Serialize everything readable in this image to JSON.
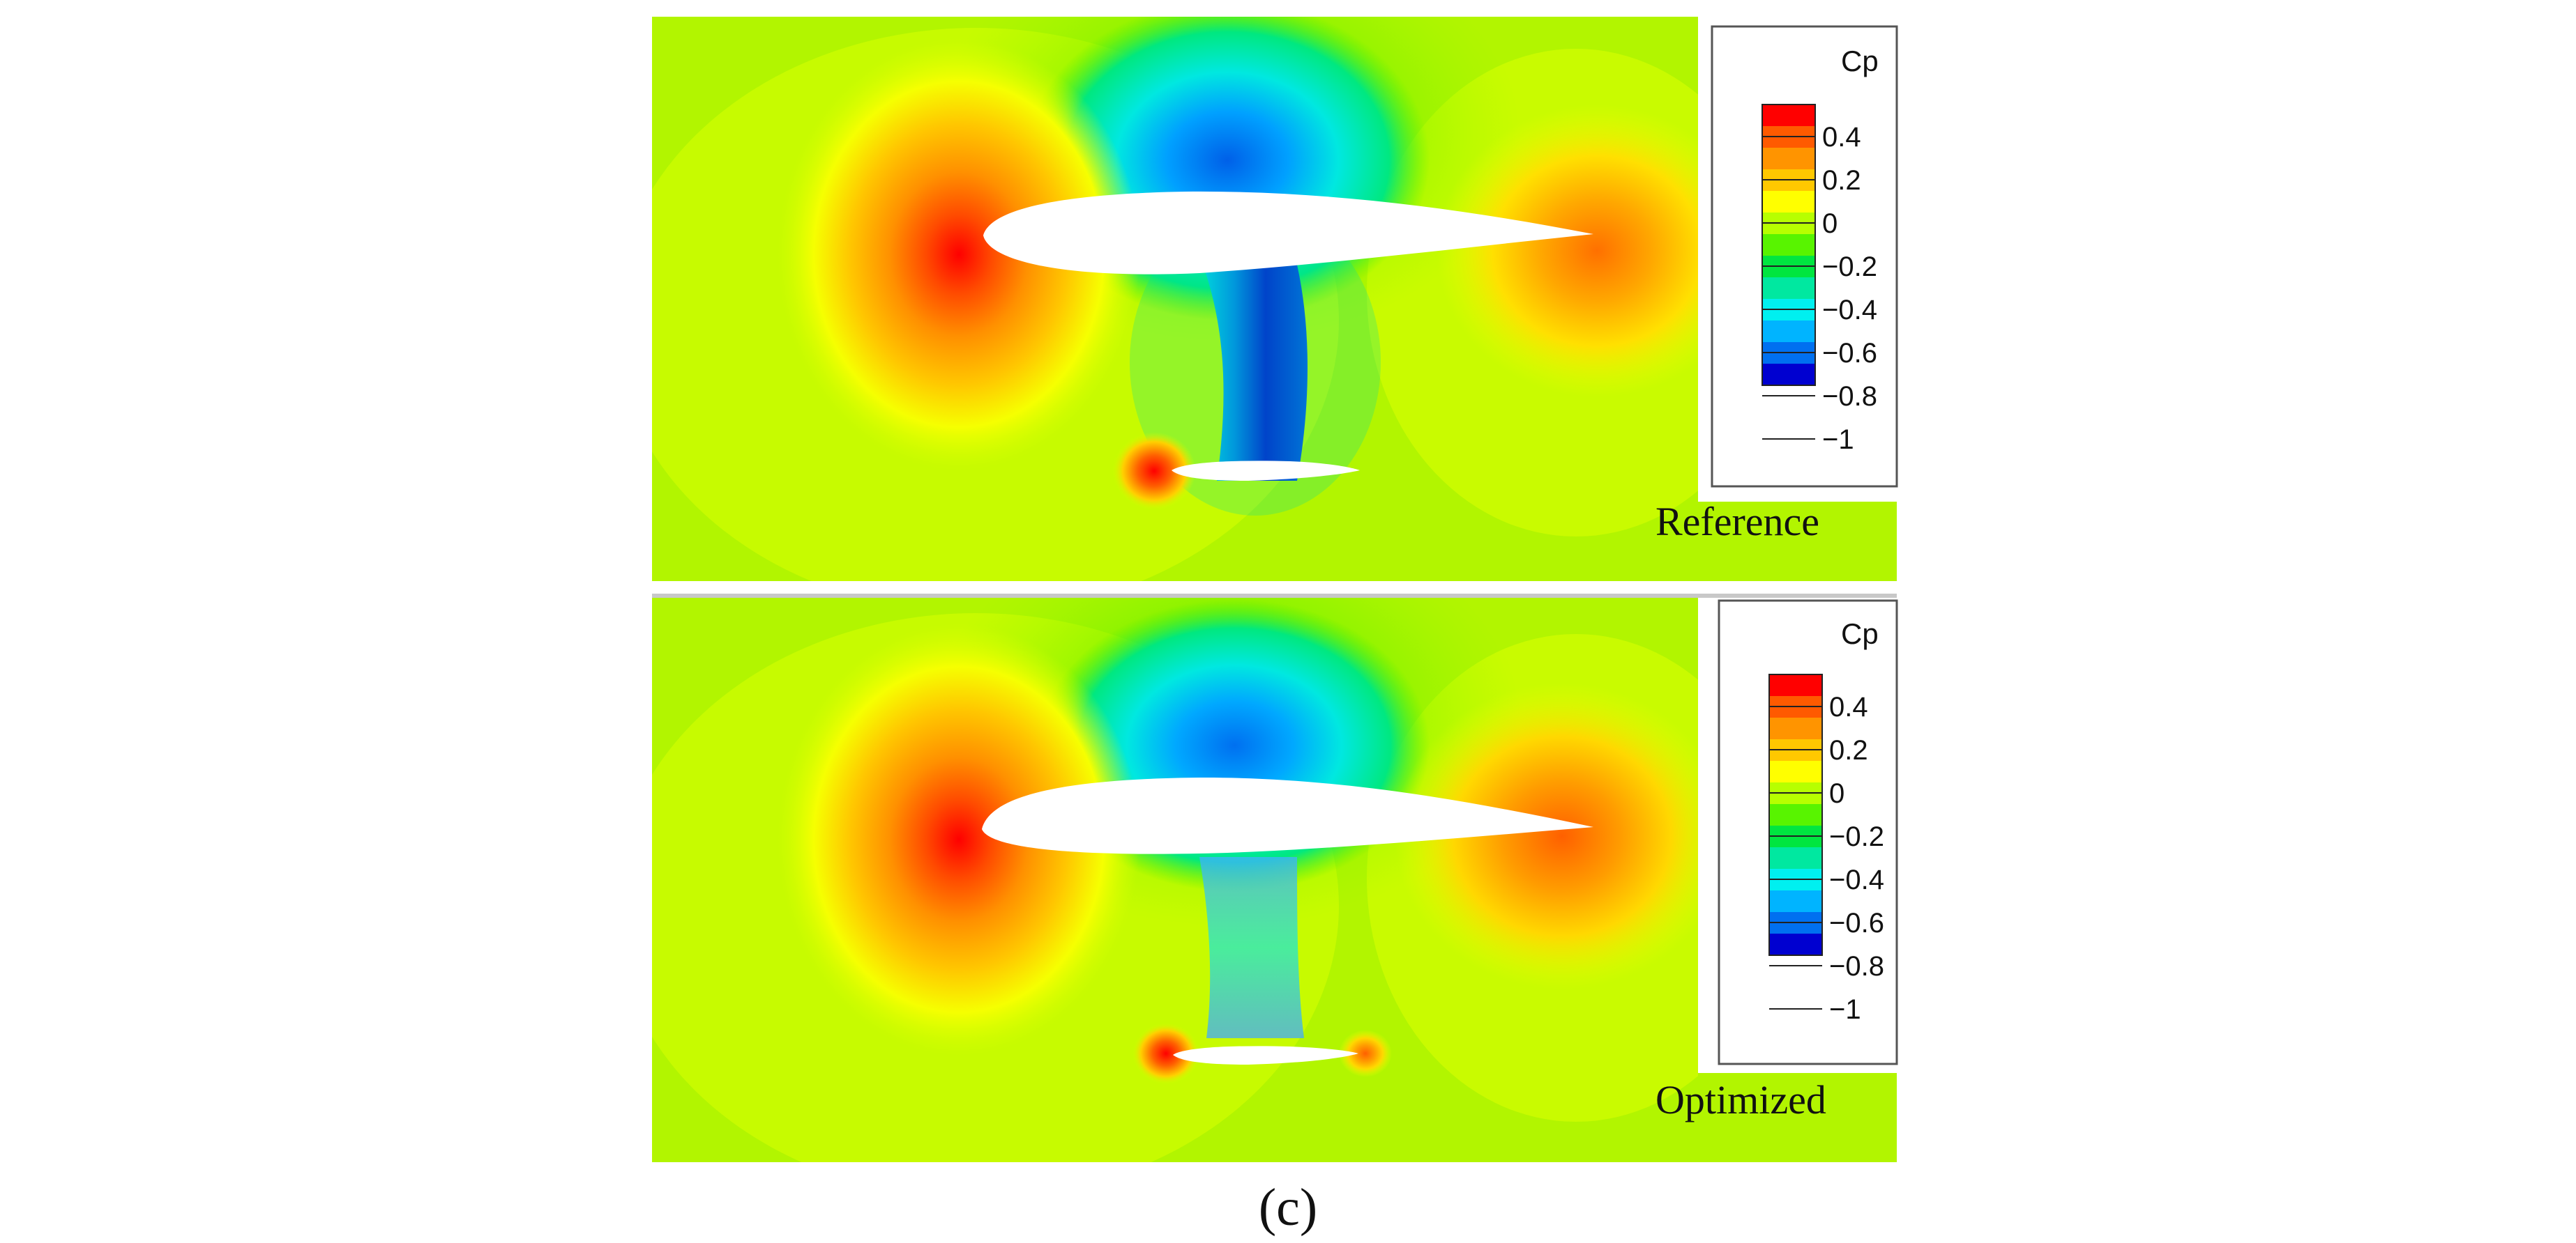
{
  "figure": {
    "caption": "(c)",
    "panels": [
      {
        "label": "Reference",
        "legend_title": "Cp"
      },
      {
        "label": "Optimized",
        "legend_title": "Cp"
      }
    ],
    "legend_ticks": [
      "0.4",
      "0.2",
      "0",
      "−0.2",
      "−0.4",
      "−0.6",
      "−0.8",
      "−1"
    ],
    "legend_tick_values": [
      0.4,
      0.2,
      0,
      -0.2,
      -0.4,
      -0.6,
      -0.8,
      -1
    ],
    "colormap": [
      "#ff0000",
      "#ff5a00",
      "#ff9400",
      "#ffc800",
      "#ffff00",
      "#b7ff00",
      "#58f400",
      "#00e640",
      "#00e8a0",
      "#00f0f0",
      "#00b4ff",
      "#0070f0",
      "#0000d0"
    ],
    "colors": {
      "freestream": "#b2f500",
      "stagnation": "#ff1a00",
      "suction": "#0040e0",
      "airfoil": "#ffffff"
    }
  }
}
